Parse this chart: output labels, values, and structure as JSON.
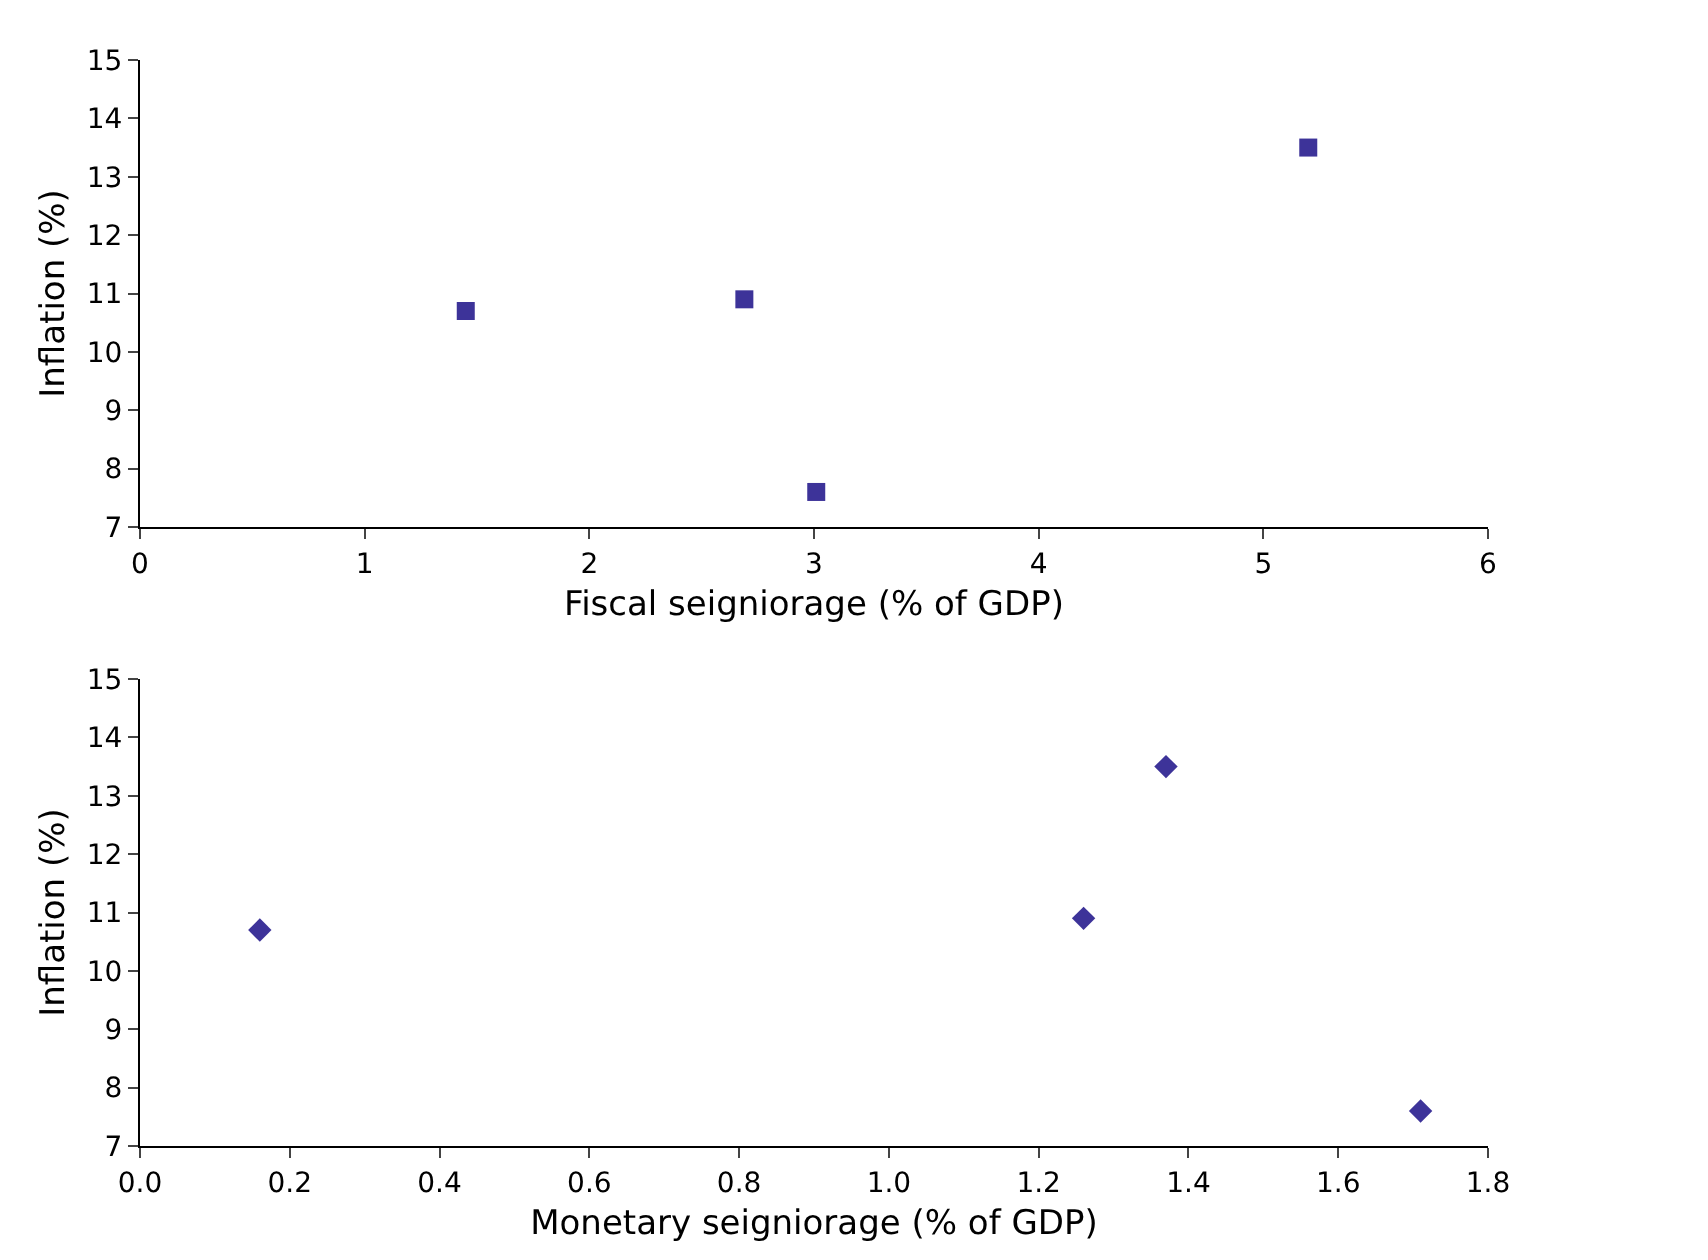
{
  "chart_data": [
    {
      "type": "scatter",
      "xlabel": "Fiscal seigniorage (% of GDP)",
      "ylabel": "Inflation (%)",
      "x": [
        1.45,
        2.69,
        3.01,
        5.2
      ],
      "values": [
        10.7,
        10.9,
        7.6,
        13.5
      ],
      "color": "#3d3399",
      "marker": "square",
      "xlim": [
        0,
        6
      ],
      "xticks": [
        0,
        1,
        2,
        3,
        4,
        5,
        6
      ],
      "ylim": [
        7,
        15
      ],
      "yticks": [
        7,
        8,
        9,
        10,
        11,
        12,
        13,
        14,
        15
      ]
    },
    {
      "type": "scatter",
      "xlabel": "Monetary seigniorage (% of GDP)",
      "ylabel": "Inflation (%)",
      "x": [
        0.16,
        1.26,
        1.37,
        1.71
      ],
      "values": [
        10.7,
        10.9,
        13.5,
        7.6
      ],
      "color": "#3d3399",
      "marker": "diamond",
      "xlim": [
        0,
        1.8
      ],
      "xticks": [
        {
          "value": 0,
          "label": "0.0"
        },
        0.2,
        0.4,
        0.6,
        0.8,
        {
          "value": 1.0,
          "label": "1.0"
        },
        1.2,
        1.4,
        1.6,
        1.8
      ],
      "ylim": [
        7,
        15
      ],
      "yticks": [
        7,
        8,
        9,
        10,
        11,
        12,
        13,
        14,
        15
      ]
    }
  ]
}
